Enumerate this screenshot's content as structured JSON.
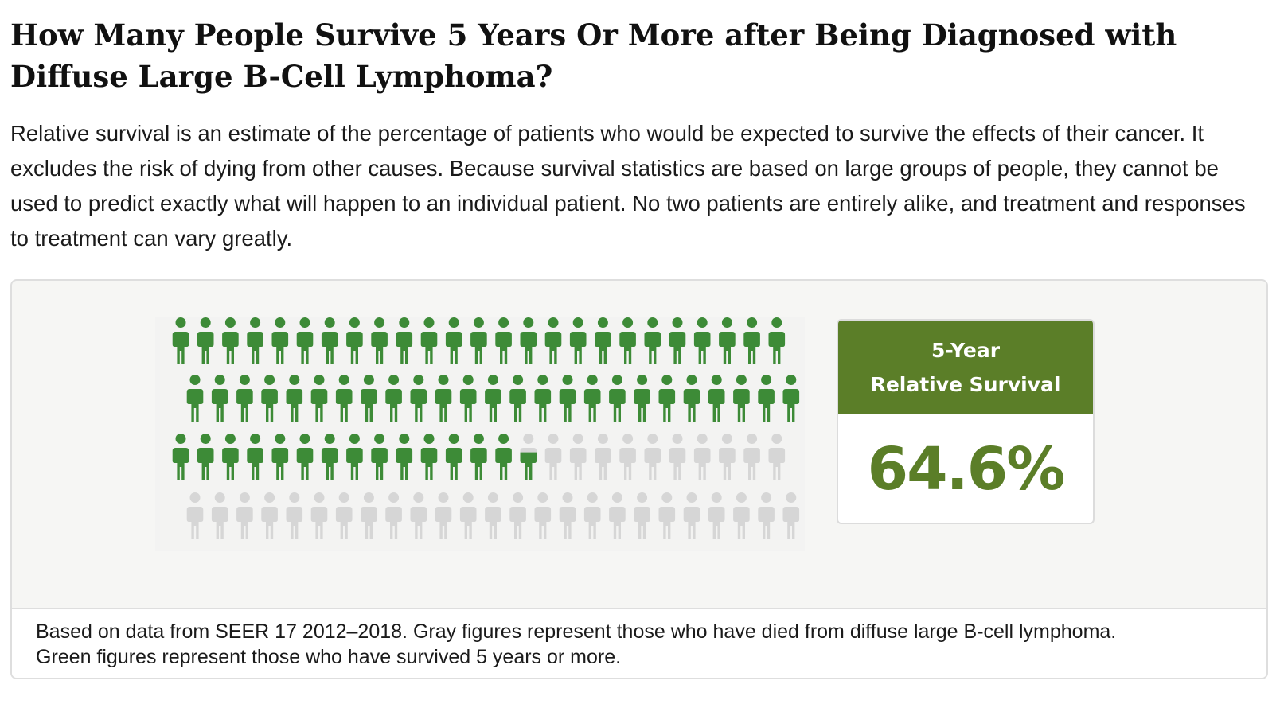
{
  "header": {
    "title": "How Many People Survive 5 Years Or More after Being Diagnosed with Diffuse Large B-Cell Lymphoma?",
    "description": "Relative survival is an estimate of the percentage of patients who would be expected to survive the effects of their cancer. It excludes the risk of dying from other causes. Because survival statistics are based on large groups of people, they cannot be used to predict exactly what will happen to an individual patient. No two patients are entirely alike, and treatment and responses to treatment can vary greatly."
  },
  "stat": {
    "label_line1": "5-Year",
    "label_line2": "Relative Survival",
    "value": "64.6%"
  },
  "footnote": {
    "line1": "Based on data from SEER 17 2012–2018. Gray figures represent those who have died from diffuse large B-cell lymphoma.",
    "line2": "Green figures represent those who have survived 5 years or more."
  },
  "colors": {
    "survived": "#3d8b37",
    "died": "#d6d6d6",
    "accent": "#5b7e28"
  },
  "chart_data": {
    "type": "pictograph",
    "total_figures": 100,
    "survived_percent": 64.6,
    "died_percent": 35.4,
    "categories": [
      "Survived 5 years or more",
      "Died from diffuse large B-cell lymphoma"
    ]
  }
}
